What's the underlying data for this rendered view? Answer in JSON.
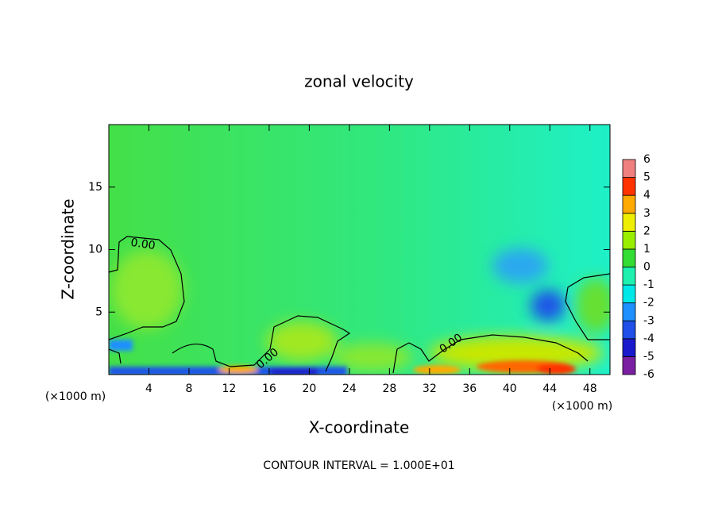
{
  "chart_data": {
    "type": "contour",
    "title": "zonal velocity",
    "x_label": "X-coordinate",
    "y_label": "Z-coordinate",
    "x_unit": "(×1000 m)",
    "y_unit": "(×1000 m)",
    "xlim": [
      0,
      50
    ],
    "xticks": [
      4,
      8,
      12,
      16,
      20,
      24,
      28,
      32,
      36,
      40,
      44,
      48
    ],
    "ylim": [
      0,
      20
    ],
    "yticks": [
      5,
      10,
      15
    ],
    "colorbar": {
      "levels": [
        -6,
        -5,
        -4,
        -3,
        -2,
        -1,
        0,
        1,
        2,
        3,
        4,
        5,
        6
      ],
      "colors": [
        "#7b1fa2",
        "#1a1acc",
        "#1f4fe8",
        "#1e90ff",
        "#00e8e8",
        "#1ef0b0",
        "#33dd33",
        "#99ee00",
        "#eeee00",
        "#ffaa00",
        "#ff3300",
        "#f08080"
      ]
    },
    "contour_labels": [
      "0.00",
      "0.00",
      "0.00"
    ],
    "footer": "CONTOUR INTERVAL = 1.000E+01"
  }
}
